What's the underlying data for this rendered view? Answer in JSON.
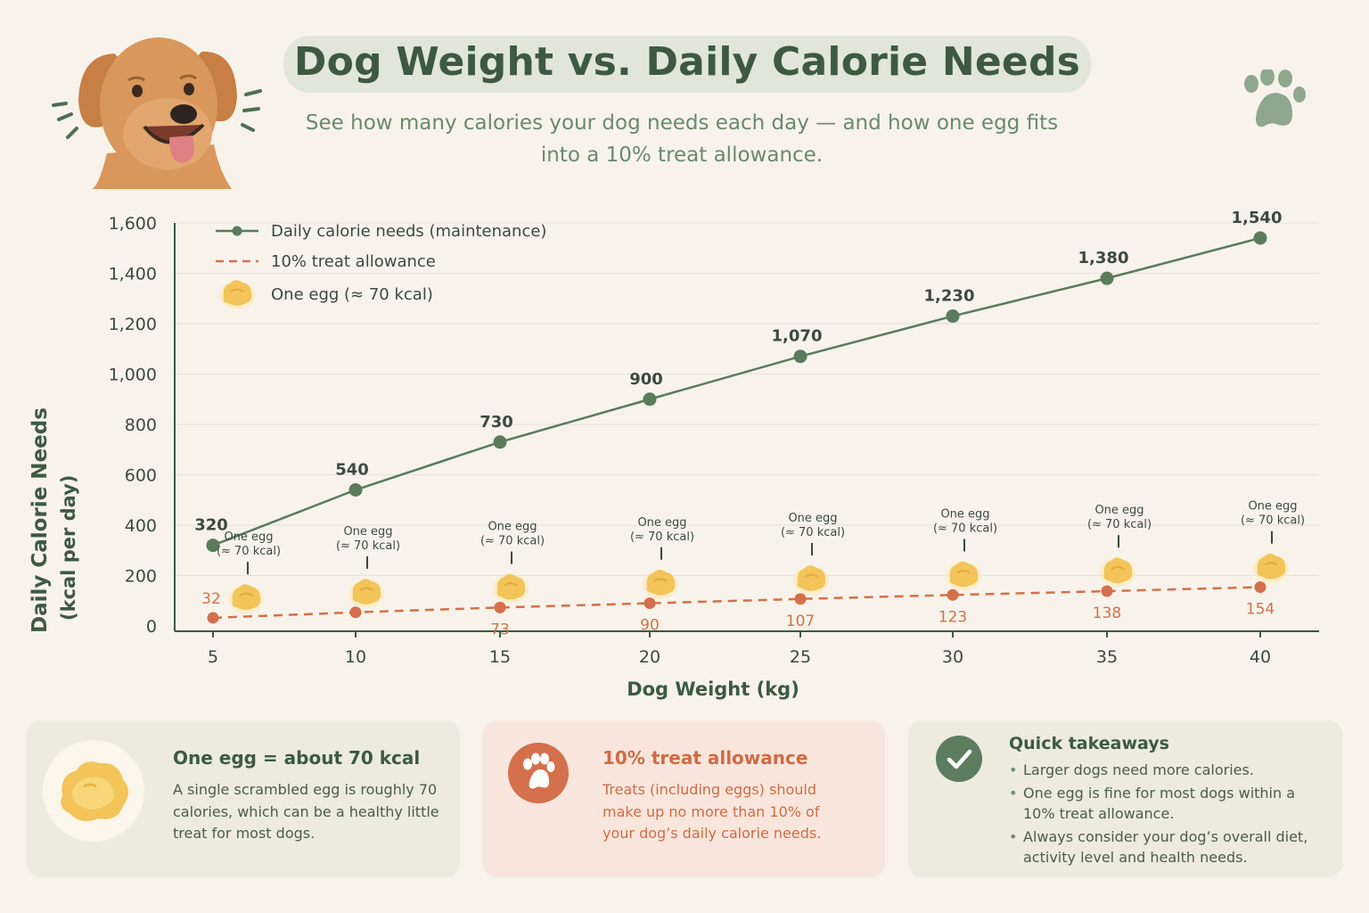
{
  "header": {
    "title": "Dog Weight vs. Daily Calorie Needs",
    "subtitle": "See how many calories your dog needs each day — and how one egg fits into a 10% treat allowance."
  },
  "colors": {
    "calorie_line": "#5a7b5c",
    "treat_line": "#d4704c",
    "egg": "#f2c45a",
    "background": "#f7f3ea"
  },
  "chart_data": {
    "type": "line",
    "title": "",
    "xlabel": "Dog Weight (kg)",
    "ylabel": "Daily Calorie Needs (kcal per day)",
    "x": [
      5,
      10,
      15,
      20,
      25,
      30,
      35,
      40
    ],
    "x_tick_labels": [
      "5",
      "10",
      "15",
      "20",
      "25",
      "30",
      "35",
      "40"
    ],
    "y_tick_labels": [
      "0",
      "200",
      "400",
      "600",
      "800",
      "1,000",
      "1,200",
      "1,400",
      "1,600"
    ],
    "ylim": [
      0,
      1600
    ],
    "grid": "horizontal",
    "legend_position": "top-left",
    "series": [
      {
        "name": "Daily calorie needs (maintenance)",
        "values": [
          320,
          540,
          730,
          900,
          1070,
          1230,
          1380,
          1540
        ],
        "labels": [
          "320",
          "540",
          "730",
          "900",
          "1,070",
          "1,230",
          "1,380",
          "1,540"
        ],
        "style": "solid"
      },
      {
        "name": "10% treat allowance",
        "values": [
          32,
          54,
          73,
          90,
          107,
          123,
          138,
          154
        ],
        "labels": [
          "32",
          "",
          "73",
          "90",
          "107",
          "123",
          "138",
          "154"
        ],
        "style": "dashed"
      }
    ],
    "egg_marker": {
      "legend_label": "One egg (≈ 70 kcal)",
      "annotation_line1": "One egg",
      "annotation_line2": "(≈ 70 kcal)",
      "kcal": 70
    }
  },
  "cards": {
    "egg": {
      "heading": "One egg = about 70 kcal",
      "body": "A single scrambled egg is roughly 70 calories, which can be a healthy little treat for most dogs."
    },
    "treat": {
      "heading": "10% treat allowance",
      "body": "Treats (including eggs) should make up no more than 10% of your dog’s daily calorie needs."
    },
    "takeaways": {
      "heading": "Quick takeaways",
      "items": [
        "Larger dogs need more calories.",
        "One egg is fine for most dogs within a 10% treat allowance.",
        "Always consider your dog’s overall diet, activity level and health needs."
      ]
    }
  }
}
